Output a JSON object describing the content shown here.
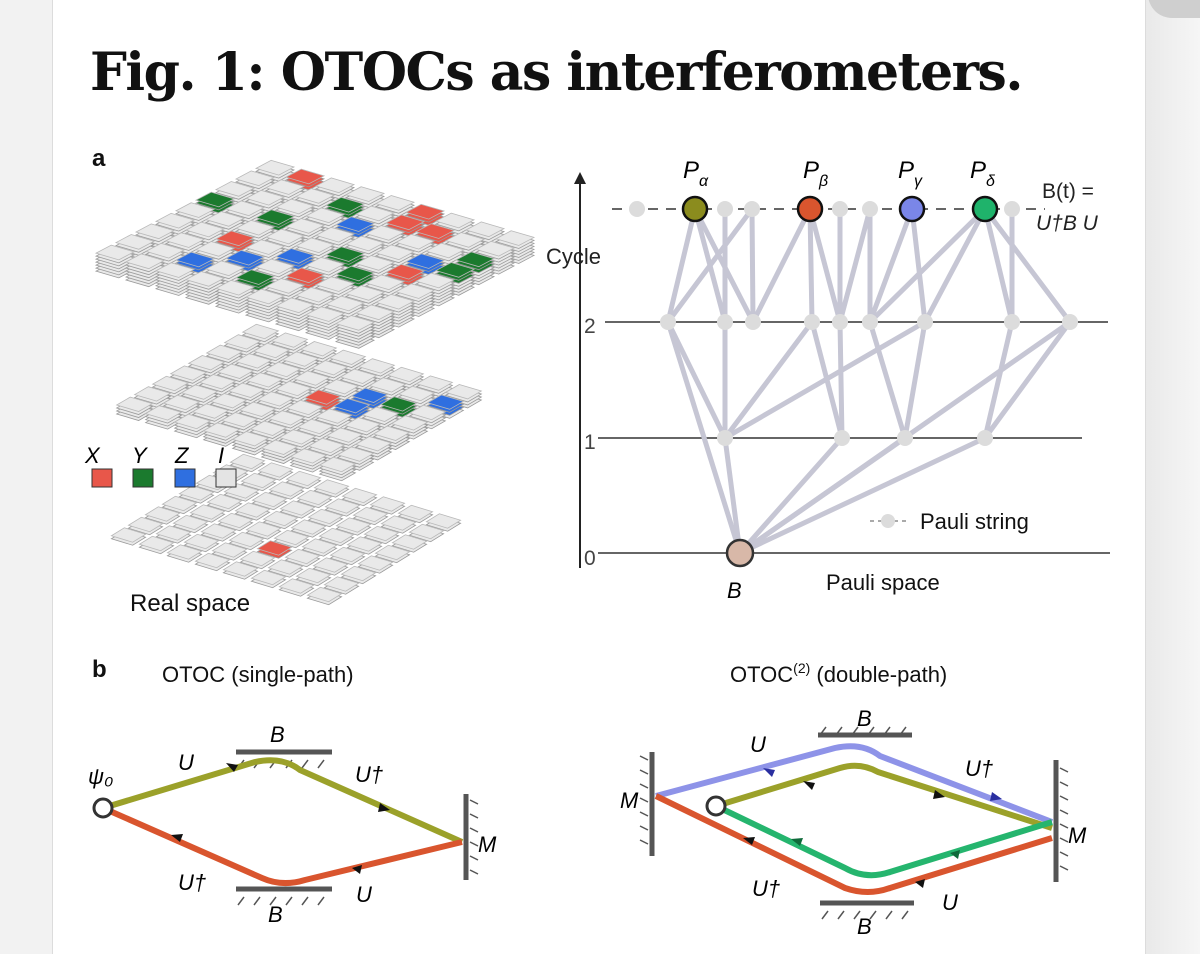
{
  "figure": {
    "title": "Fig. 1: OTOCs as interferometers.",
    "panel_a_label": "a",
    "panel_b_label": "b"
  },
  "panel_a": {
    "legend": {
      "labels": [
        "X",
        "Y",
        "Z",
        "I"
      ],
      "colors": [
        "#e8574a",
        "#1b7a2e",
        "#2f6fe0",
        "#e4e4e4"
      ]
    },
    "real_space_label": "Real space",
    "axis_label": "Cycle",
    "cycle_ticks": [
      "0",
      "1",
      "2"
    ],
    "top_nodes": [
      {
        "label": "P",
        "subscript": "α",
        "color": "#8b8c1e"
      },
      {
        "label": "P",
        "subscript": "β",
        "color": "#d9552e"
      },
      {
        "label": "P",
        "subscript": "γ",
        "color": "#7a86e8"
      },
      {
        "label": "P",
        "subscript": "δ",
        "color": "#1fb36b"
      }
    ],
    "operator_label_line1": "B(t) =",
    "operator_label_line2": "U†B U",
    "root_label": "B",
    "root_color": "#d8b8a8",
    "pauli_string_legend": "Pauli string",
    "pauli_space_label": "Pauli space"
  },
  "panel_b": {
    "single": {
      "title": "OTOC (single-path)",
      "psi": "ψ₀",
      "labels": {
        "u_top": "U",
        "udag_top": "U†",
        "b_top": "B",
        "m": "M",
        "udag_bottom": "U†",
        "b_bottom": "B",
        "u_bottom": "U"
      },
      "colors": {
        "forward": "#9ba12a",
        "backward": "#d9552e"
      }
    },
    "double": {
      "title": "OTOC",
      "title_sup": "(2)",
      "title_rest": " (double-path)",
      "labels": {
        "m_left": "M",
        "u_top": "U",
        "b_top": "B",
        "udag_top": "U†",
        "m_right": "M",
        "udag_bottom": "U†",
        "b_bottom": "B",
        "u_bottom": "U"
      },
      "colors": {
        "blue": "#8e93e8",
        "olive": "#9ba12a",
        "green": "#25b56e",
        "orange": "#d9552e"
      }
    }
  }
}
